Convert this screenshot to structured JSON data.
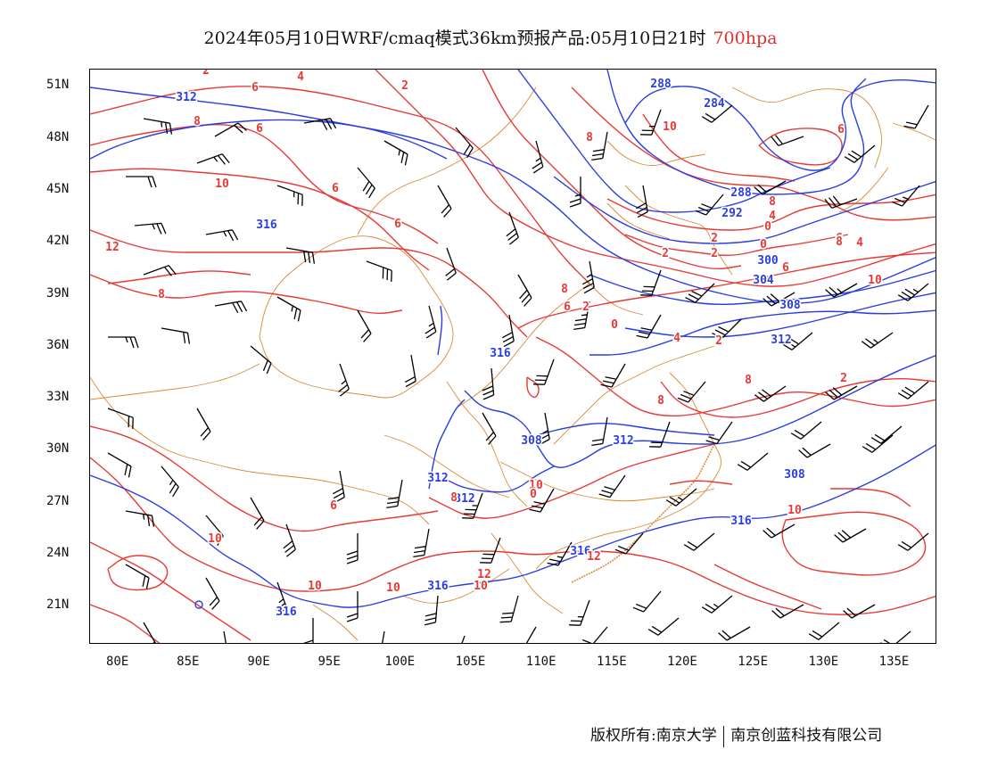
{
  "title": {
    "main": "2024年05月10日WRF/cmaq模式36km预报产品:05月10日21时",
    "level": "700hpa",
    "level_color": "#e0302c"
  },
  "axes": {
    "lat_labels": [
      "51N",
      "48N",
      "45N",
      "42N",
      "39N",
      "36N",
      "33N",
      "30N",
      "27N",
      "24N",
      "21N"
    ],
    "lat_values": [
      51,
      48,
      45,
      42,
      39,
      36,
      33,
      30,
      27,
      24,
      21
    ],
    "lat_range": [
      18.8,
      52
    ],
    "lon_labels": [
      "80E",
      "85E",
      "90E",
      "95E",
      "100E",
      "105E",
      "110E",
      "115E",
      "120E",
      "125E",
      "130E",
      "135E"
    ],
    "lon_values": [
      80,
      85,
      90,
      95,
      100,
      105,
      110,
      115,
      120,
      125,
      130,
      135
    ],
    "lon_range": [
      78,
      138
    ]
  },
  "layers": {
    "height_contour_color": "#2a3ee0",
    "temperature_contour_color": "#e63a36",
    "boundary_color": "#d98a3a",
    "wind_barb_color": "#000000"
  },
  "height_labels": [
    "312",
    "316",
    "288",
    "284",
    "288",
    "292",
    "300",
    "304",
    "308",
    "308",
    "312",
    "316",
    "312",
    "308",
    "312",
    "312",
    "316",
    "316",
    "316",
    "316"
  ],
  "temperature_labels": [
    "2",
    "4",
    "2",
    "6",
    "8",
    "6",
    "8",
    "10",
    "6",
    "10",
    "12",
    "6",
    "8",
    "8",
    "2",
    "0",
    "2",
    "2",
    "0",
    "4",
    "2",
    "0",
    "6",
    "4",
    "6",
    "8",
    "6",
    "10",
    "8",
    "6",
    "8",
    "12",
    "10",
    "10",
    "6",
    "10",
    "10",
    "12",
    "8",
    "10",
    "0",
    "10",
    "2",
    "8",
    "2",
    "4"
  ],
  "footer": {
    "copyright": "版权所有:南京大学",
    "company": "南京创蓝科技有限公司"
  }
}
